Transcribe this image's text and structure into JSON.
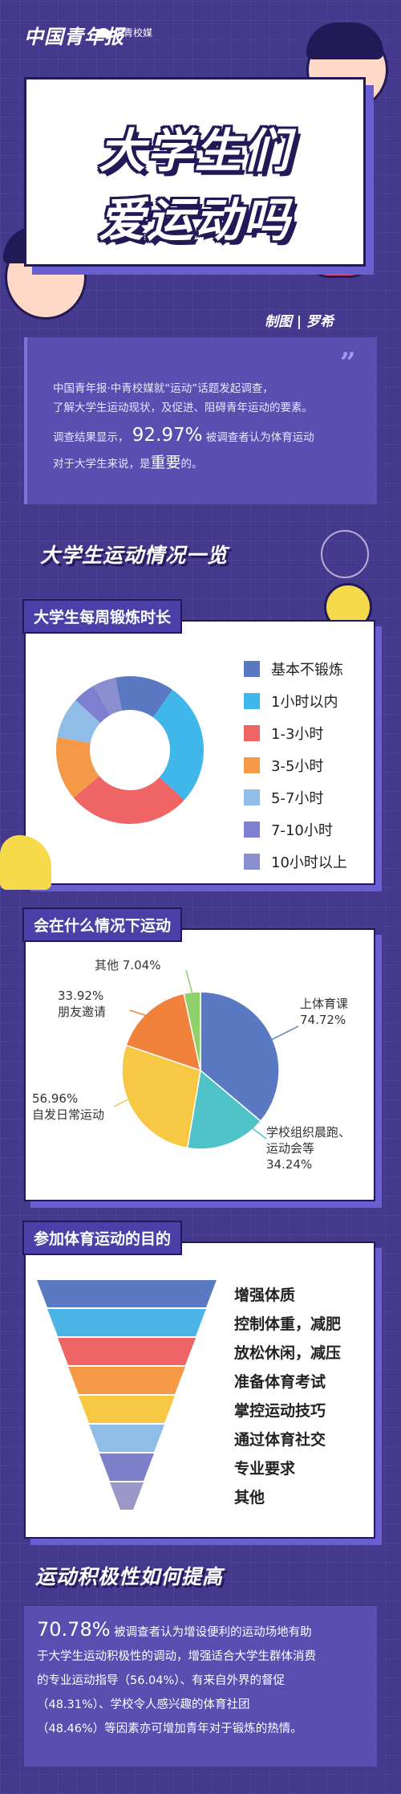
{
  "header": {
    "logo_text": "中国青年报",
    "sub_logo_text": "中青校媒"
  },
  "title": {
    "line1": "大学生们",
    "line2": "爱运动吗"
  },
  "credit": "制图 | 罗希",
  "intro": {
    "line1": "中国青年报·中青校媒就“运动”话题发起调查，",
    "line2": "了解大学生运动现状，及促进、阻碍青年运动的要素。",
    "line3_a": "调查结果显示，",
    "line3_pct": "92.97%",
    "line3_b": "被调查者认为体育运动",
    "line4_a": "对于大学生来说，是",
    "line4_strong": "重要",
    "line4_b": "的。"
  },
  "section1": {
    "title": "大学生运动情况一览"
  },
  "exercise_card": {
    "title": "大学生每周锻炼时长",
    "legend": [
      {
        "label": "基本不锻炼",
        "color": "#5b79c2"
      },
      {
        "label": "1小时以内",
        "color": "#3fb7ea"
      },
      {
        "label": "1-3小时",
        "color": "#ef6464"
      },
      {
        "label": "3-5小时",
        "color": "#f49a47"
      },
      {
        "label": "5-7小时",
        "color": "#8fbde8"
      },
      {
        "label": "7-10小时",
        "color": "#7d7fd0"
      },
      {
        "label": "10小时以上",
        "color": "#8c8fcf"
      }
    ]
  },
  "situation_card": {
    "title": "会在什么情况下运动",
    "labels": {
      "pe_class_name": "上体育课",
      "pe_class_value": "74.72%",
      "school_name_1": "学校组织晨跑、",
      "school_name_2": "运动会等",
      "school_value": "34.24%",
      "daily_value": "56.96%",
      "daily_name": "自发日常运动",
      "friends_value": "33.92%",
      "friends_name": "朋友邀请",
      "other_name": "其他",
      "other_value": "7.04%"
    }
  },
  "purpose_card": {
    "title": "参加体育运动的目的",
    "items": [
      "增强体质",
      "控制体重，减肥",
      "放松休闲，减压",
      "准备体育考试",
      "掌控运动技巧",
      "通过体育社交",
      "专业要求",
      "其他"
    ],
    "colors": [
      "#5b79c2",
      "#4bb5e8",
      "#ef6464",
      "#f49a47",
      "#f7c843",
      "#8fbde8",
      "#7d80c9",
      "#9b97c9"
    ]
  },
  "section2": {
    "title": "运动积极性如何提高"
  },
  "footer": {
    "pct": "70.78%",
    "line1": "被调查者认为增设便利的运动场地有助",
    "line2": "于大学生运动积极性的调动，增强适合大学生群体消费",
    "line3": "的专业运动指导（56.04%）、有来自外界的督促",
    "line4": "（48.31%）、学校令人感兴趣的体育社团",
    "line5": "（48.46%）等因素亦可增加青年对于锻炼的热情。"
  },
  "chart_data": [
    {
      "type": "pie",
      "title": "大学生每周锻炼时长",
      "categories": [
        "基本不锻炼",
        "1小时以内",
        "1-3小时",
        "3-5小时",
        "5-7小时",
        "7-10小时",
        "10小时以上"
      ],
      "values": [
        13,
        27,
        27,
        14,
        9,
        5,
        5
      ],
      "legend": "right"
    },
    {
      "type": "pie",
      "title": "会在什么情况下运动",
      "categories": [
        "上体育课",
        "学校组织晨跑、运动会等",
        "自发日常运动",
        "朋友邀请",
        "其他"
      ],
      "values": [
        74.72,
        34.24,
        56.96,
        33.92,
        7.04
      ]
    },
    {
      "type": "bar",
      "title": "参加体育运动的目的",
      "categories": [
        "增强体质",
        "控制体重，减肥",
        "放松休闲，减压",
        "准备体育考试",
        "掌控运动技巧",
        "通过体育社交",
        "专业要求",
        "其他"
      ]
    }
  ]
}
